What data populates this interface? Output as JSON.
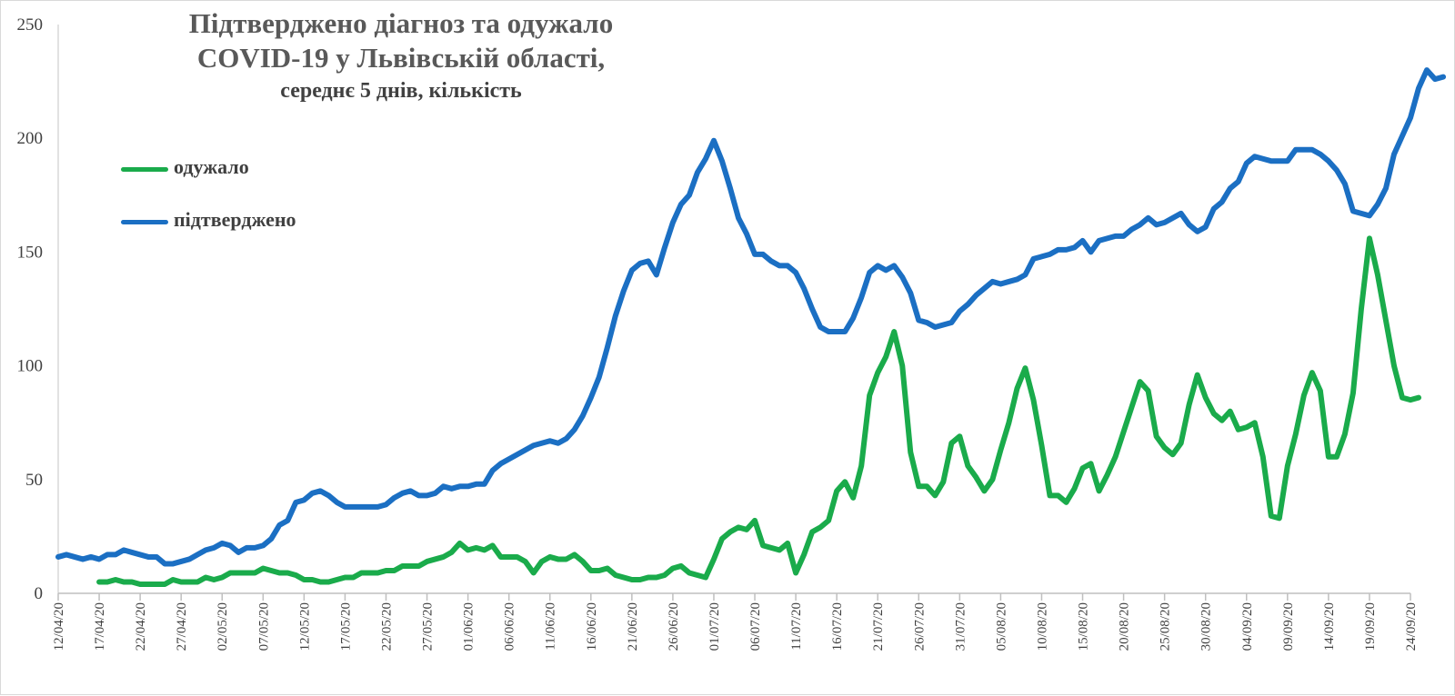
{
  "chart_data": {
    "type": "line",
    "title_line1": "Підтверджено діагноз та одужало",
    "title_line2": "COVID-19 у Львівській області,",
    "subtitle": "середнє 5 днів, кількість",
    "xlabel": "",
    "ylabel": "",
    "ylim": [
      0,
      250
    ],
    "yticks": [
      "0",
      "50",
      "100",
      "150",
      "200",
      "250"
    ],
    "date_start": "12/04/20",
    "date_end": "24/09/20",
    "xtick_labels": [
      "12/04/20",
      "17/04/20",
      "22/04/20",
      "27/04/20",
      "02/05/20",
      "07/05/20",
      "12/05/20",
      "17/05/20",
      "22/05/20",
      "27/05/20",
      "01/06/20",
      "06/06/20",
      "11/06/20",
      "16/06/20",
      "21/06/20",
      "26/06/20",
      "01/07/20",
      "06/07/20",
      "11/07/20",
      "16/07/20",
      "21/07/20",
      "26/07/20",
      "31/07/20",
      "05/08/20",
      "10/08/20",
      "15/08/20",
      "20/08/20",
      "25/08/20",
      "30/08/20",
      "04/09/20",
      "09/09/20",
      "14/09/20",
      "19/09/20",
      "24/09/20"
    ],
    "grid": false,
    "legend_position": "left",
    "series": [
      {
        "name": "одужало",
        "color": "#1aab4b",
        "start": "17/04/20",
        "values": [
          5,
          5,
          6,
          5,
          5,
          4,
          4,
          4,
          4,
          6,
          5,
          5,
          5,
          7,
          6,
          7,
          9,
          9,
          9,
          9,
          11,
          10,
          9,
          9,
          8,
          6,
          6,
          5,
          5,
          6,
          7,
          7,
          9,
          9,
          9,
          10,
          10,
          12,
          12,
          12,
          14,
          15,
          16,
          18,
          22,
          19,
          20,
          19,
          21,
          16,
          16,
          16,
          14,
          9,
          14,
          16,
          15,
          15,
          17,
          14,
          10,
          10,
          11,
          8,
          7,
          6,
          6,
          7,
          7,
          8,
          11,
          12,
          9,
          8,
          7,
          15,
          24,
          27,
          29,
          28,
          32,
          21,
          20,
          19,
          22,
          9,
          17,
          27,
          29,
          32,
          45,
          49,
          42,
          56,
          87,
          97,
          104,
          115,
          100,
          62,
          47,
          47,
          43,
          49,
          66,
          69,
          56,
          51,
          45,
          50,
          63,
          75,
          90,
          99,
          85,
          65,
          43,
          43,
          40,
          46,
          55,
          57,
          45,
          52,
          60,
          71,
          82,
          93,
          89,
          69,
          64,
          61,
          66,
          83,
          96,
          86,
          79,
          76,
          80,
          72,
          73,
          75,
          60,
          34,
          33,
          56,
          70,
          87,
          97,
          89,
          60,
          60,
          70,
          88,
          125,
          156,
          140,
          120,
          100,
          86,
          85,
          86
        ]
      },
      {
        "name": "підтверджено",
        "color": "#1b6fc3",
        "start": "12/04/20",
        "values": [
          16,
          17,
          16,
          15,
          16,
          15,
          17,
          17,
          19,
          18,
          17,
          16,
          16,
          13,
          13,
          14,
          15,
          17,
          19,
          20,
          22,
          21,
          18,
          20,
          20,
          21,
          24,
          30,
          32,
          40,
          41,
          44,
          45,
          43,
          40,
          38,
          38,
          38,
          38,
          38,
          39,
          42,
          44,
          45,
          43,
          43,
          44,
          47,
          46,
          47,
          47,
          48,
          48,
          54,
          57,
          59,
          61,
          63,
          65,
          66,
          67,
          66,
          68,
          72,
          78,
          86,
          95,
          108,
          122,
          133,
          142,
          145,
          146,
          140,
          152,
          163,
          171,
          175,
          185,
          191,
          199,
          190,
          178,
          165,
          158,
          149,
          149,
          146,
          144,
          144,
          141,
          134,
          125,
          117,
          115,
          115,
          115,
          121,
          130,
          141,
          144,
          142,
          144,
          139,
          132,
          120,
          119,
          117,
          118,
          119,
          124,
          127,
          131,
          134,
          137,
          136,
          137,
          138,
          140,
          147,
          148,
          149,
          151,
          151,
          152,
          155,
          150,
          155,
          156,
          157,
          157,
          160,
          162,
          165,
          162,
          163,
          165,
          167,
          162,
          159,
          161,
          169,
          172,
          178,
          181,
          189,
          192,
          191,
          190,
          190,
          190,
          195,
          195,
          195,
          193,
          190,
          186,
          180,
          168,
          167,
          166,
          171,
          178,
          193,
          201,
          209,
          222,
          230,
          226,
          227
        ]
      }
    ]
  }
}
